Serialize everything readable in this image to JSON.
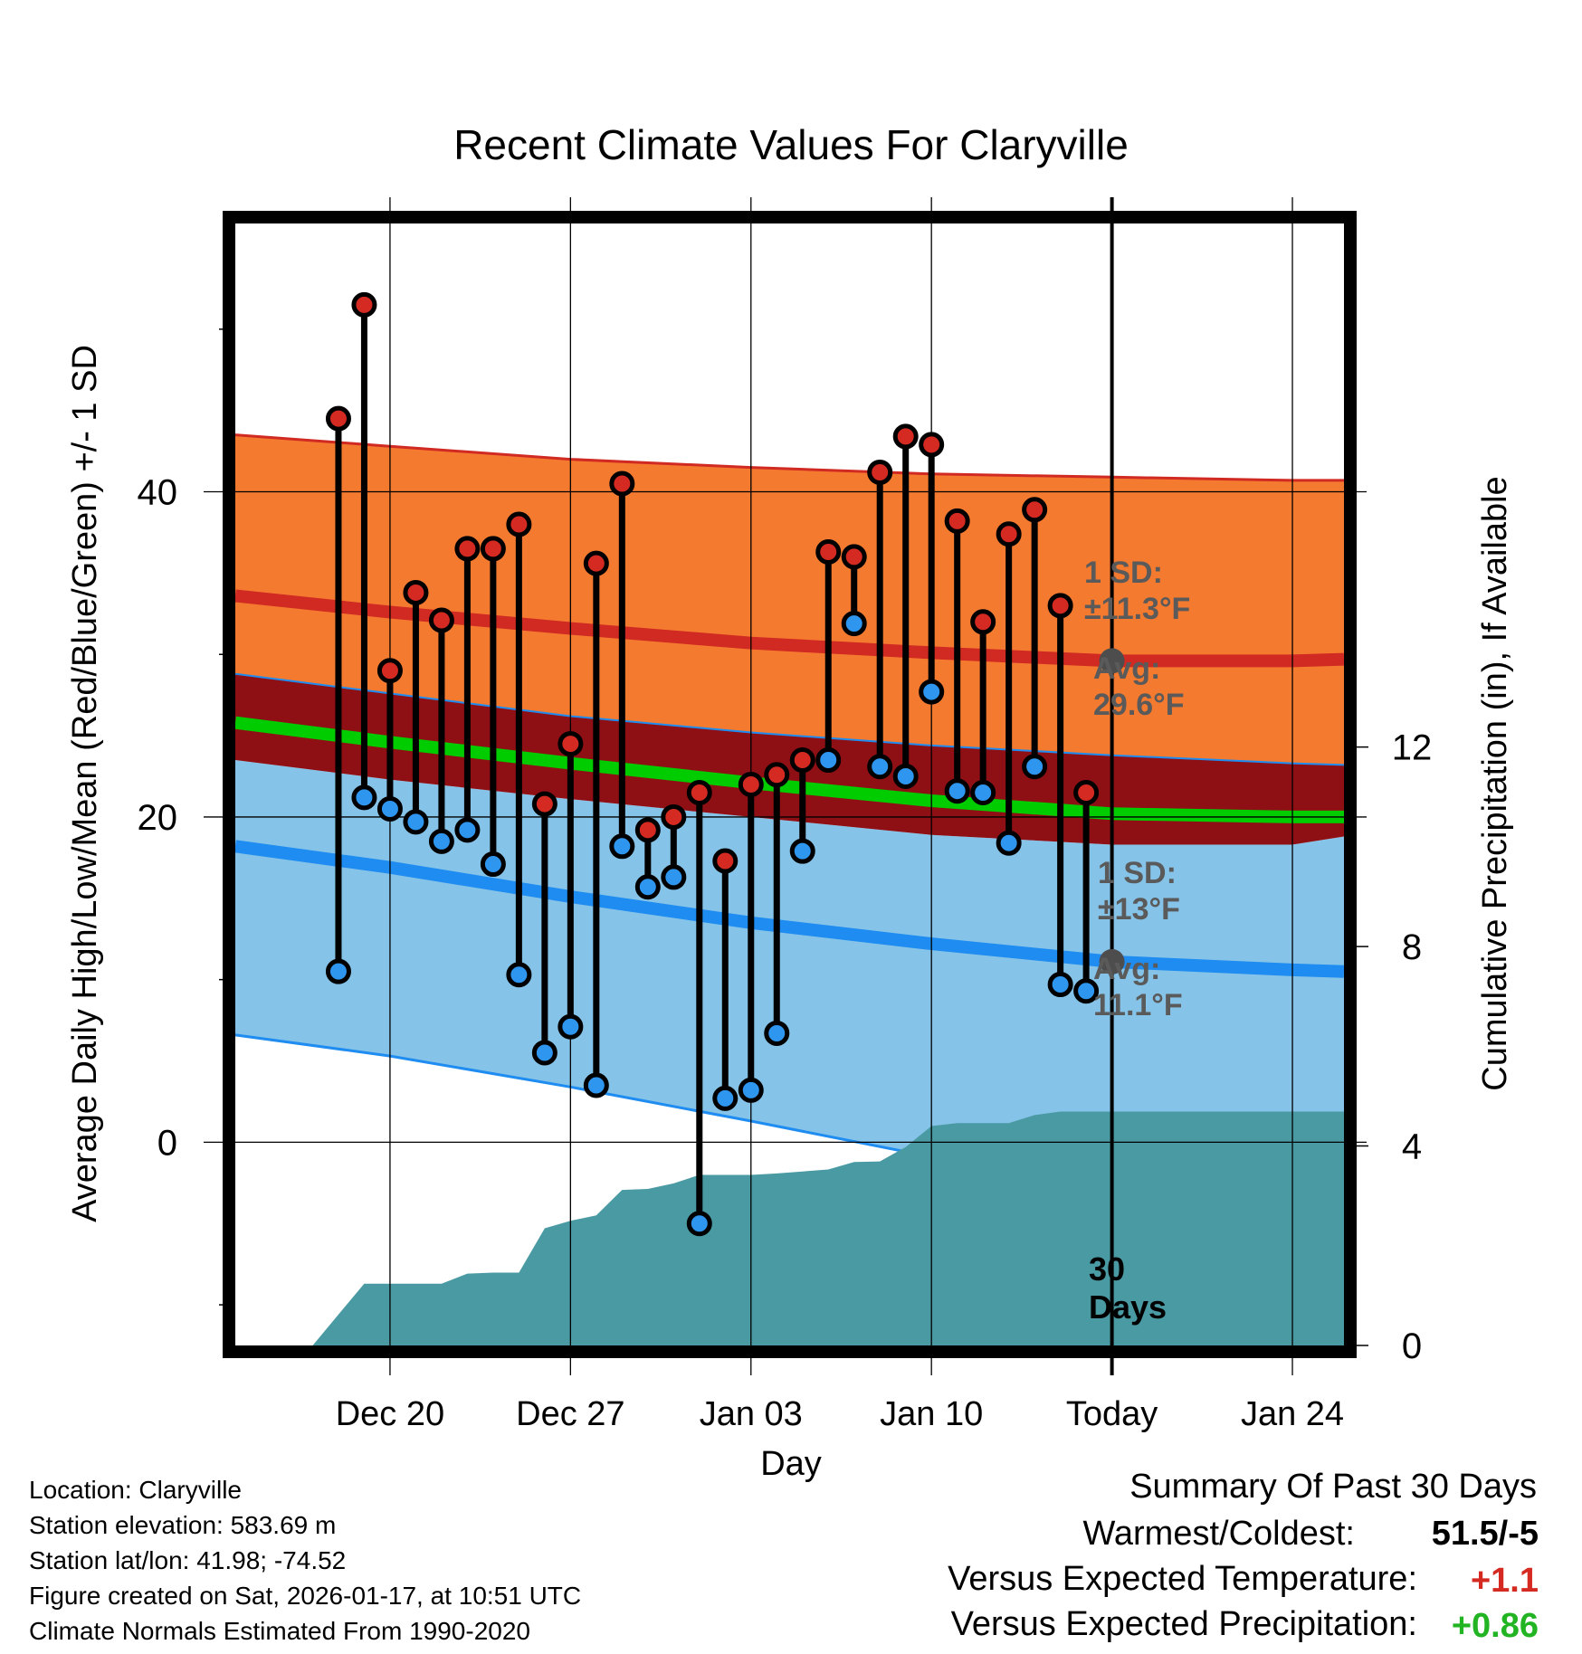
{
  "chart_data": {
    "type": "line",
    "title": "Recent Climate Values For Claryville",
    "xlabel": "Day",
    "ylabel": "Average Daily High/Low/Mean (Red/Blue/Green) +/- 1 SD",
    "y2label": "Cumulative Precipitation (in), If Available",
    "day_range": [
      -34,
      9
    ],
    "ylim": [
      -12.5,
      56.5
    ],
    "y2lim": [
      0,
      22.5
    ],
    "yticks": [
      0,
      20,
      40
    ],
    "y_minor_ticks": [
      -10,
      10,
      30,
      50
    ],
    "y2ticks": [
      0,
      4,
      8,
      12
    ],
    "x_tick_days": [
      -28,
      -21,
      -14,
      -7,
      0,
      7
    ],
    "x_tick_labels": [
      "Dec 20",
      "Dec 27",
      "Jan 03",
      "Jan 10",
      "Today",
      "Jan 24"
    ],
    "normals_days": [
      -34,
      -28,
      -21,
      -14,
      -7,
      0,
      7,
      9
    ],
    "normal_high": [
      33.6,
      32.6,
      31.6,
      30.7,
      30.1,
      29.6,
      29.6,
      29.7
    ],
    "normal_high_upper": [
      43.5,
      42.8,
      42.0,
      41.5,
      41.1,
      40.9,
      40.7,
      40.7
    ],
    "normal_high_lower": [
      28.8,
      27.6,
      26.2,
      25.2,
      24.4,
      23.8,
      23.3,
      23.2
    ],
    "normal_mean": [
      25.8,
      24.6,
      23.3,
      22.1,
      21.0,
      20.2,
      20.0,
      20.0
    ],
    "normal_low": [
      18.2,
      16.9,
      15.1,
      13.5,
      12.2,
      11.1,
      10.6,
      10.5
    ],
    "normal_low_upper": [
      23.5,
      22.3,
      21.1,
      20.0,
      18.9,
      18.3,
      18.3,
      18.8
    ],
    "normal_low_lower": [
      6.6,
      5.3,
      3.4,
      1.3,
      -0.9,
      -1.5,
      -1.5,
      -1.5
    ],
    "obs_days": [
      -30,
      -29,
      -28,
      -27,
      -26,
      -25,
      -24,
      -23,
      -22,
      -21,
      -20,
      -19,
      -18,
      -17,
      -16,
      -15,
      -14,
      -13,
      -12,
      -11,
      -10,
      -9,
      -8,
      -7,
      -6,
      -5,
      -4,
      -3,
      -2,
      -1
    ],
    "obs_high": [
      44.5,
      51.5,
      29.0,
      33.8,
      32.1,
      36.5,
      36.5,
      38.0,
      20.8,
      24.5,
      35.6,
      40.5,
      19.2,
      20.0,
      21.5,
      17.3,
      22.0,
      22.6,
      23.5,
      36.3,
      36.0,
      41.2,
      43.4,
      42.9,
      38.2,
      32.0,
      37.4,
      38.9,
      33.0,
      21.5
    ],
    "obs_low": [
      10.5,
      21.2,
      20.5,
      19.7,
      18.5,
      19.2,
      17.1,
      10.3,
      5.5,
      7.1,
      3.5,
      18.2,
      15.7,
      16.3,
      -5.0,
      2.7,
      3.2,
      6.7,
      17.9,
      23.5,
      31.9,
      23.1,
      22.5,
      27.7,
      21.6,
      21.5,
      18.4,
      23.1,
      9.7,
      9.3
    ],
    "precip_days": [
      -34,
      -33,
      -32,
      -31,
      -29,
      -28,
      -26,
      -25,
      -24,
      -23,
      -22,
      -21,
      -20,
      -19,
      -18,
      -17,
      -16,
      -15,
      -14,
      -13,
      -12,
      -11,
      -10,
      -9,
      -8,
      -7,
      -6,
      -5,
      -4,
      -3,
      -2,
      -1,
      0,
      9
    ],
    "precip_cum": [
      0,
      0,
      0,
      0,
      1.24,
      1.24,
      1.24,
      1.44,
      1.46,
      1.46,
      2.35,
      2.5,
      2.61,
      3.12,
      3.14,
      3.25,
      3.42,
      3.42,
      3.42,
      3.45,
      3.49,
      3.53,
      3.68,
      3.69,
      3.98,
      4.4,
      4.46,
      4.46,
      4.46,
      4.62,
      4.69,
      4.69,
      4.69,
      4.69
    ],
    "today_day": 0,
    "high_sd_text": "1 SD:\n±11.3°F",
    "high_avg_text": "Avg:\n29.6°F",
    "low_sd_text": "1 SD:\n±13°F",
    "low_avg_text": "Avg:\n11.1°F",
    "days_label": "30\nDays"
  },
  "info": {
    "location": "Location: Claryville",
    "elevation": "Station elevation: 583.69 m",
    "latlon": "Station lat/lon: 41.98; -74.52",
    "created": "Figure created on Sat, 2026-01-17, at 10:51 UTC",
    "normals": "Climate Normals Estimated From 1990-2020"
  },
  "summary": {
    "title": "Summary Of Past 30 Days",
    "warm_cold_label": "Warmest/Coldest:",
    "warm_cold_value": "51.5/-5",
    "temp_label": "Versus Expected Temperature:",
    "temp_value": "+1.1",
    "precip_label": "Versus Expected Precipitation:",
    "precip_value": "+0.86"
  },
  "colors": {
    "high_band": "#f47a30",
    "high_line": "#d02a22",
    "overlap_band": "#8e1015",
    "mean_line": "#00cc00",
    "low_band": "#86c3e8",
    "low_line": "#1e8cf0",
    "precip": "#4a9aa3",
    "high_dot": "#d42a22",
    "low_dot": "#2f96f0",
    "note_text": "#5a5a5a",
    "temp_value": "#d42a22",
    "precip_value": "#22b422"
  }
}
